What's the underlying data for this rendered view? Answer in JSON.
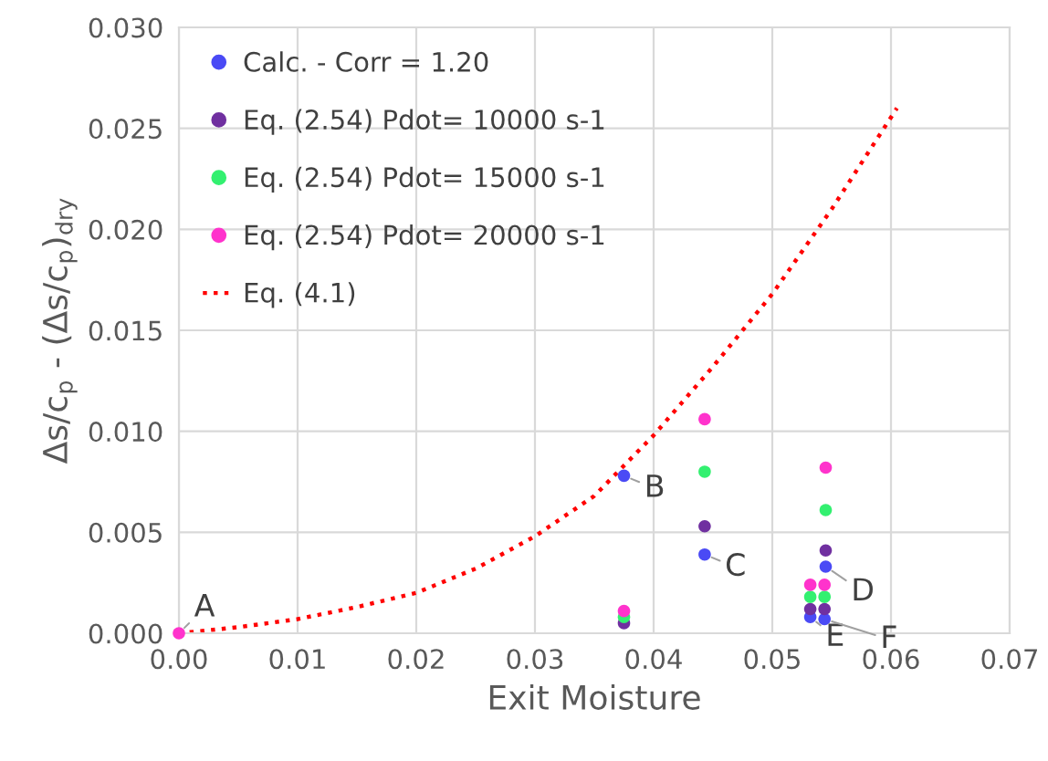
{
  "chart_data": {
    "type": "scatter",
    "xlabel": "Exit Moisture",
    "ylabel": "Δs/c$_{p}$ - (Δs/c$_{p}$)$_{dry}$",
    "xlim": [
      0,
      0.07
    ],
    "xticks": [
      {
        "value": 0,
        "label": "0.00"
      },
      {
        "value": 0.01,
        "label": "0.01"
      },
      {
        "value": 0.02,
        "label": "0.02"
      },
      {
        "value": 0.03,
        "label": "0.03"
      },
      {
        "value": 0.04,
        "label": "0.04"
      },
      {
        "value": 0.05,
        "label": "0.05"
      },
      {
        "value": 0.06,
        "label": "0.06"
      },
      {
        "value": 0.07,
        "label": "0.07"
      }
    ],
    "ylim": [
      0,
      0.03
    ],
    "yticks": [
      {
        "value": 0,
        "label": "0.000"
      },
      {
        "value": 0.005,
        "label": "0.005"
      },
      {
        "value": 0.01,
        "label": "0.010"
      },
      {
        "value": 0.015,
        "label": "0.015"
      },
      {
        "value": 0.02,
        "label": "0.020"
      },
      {
        "value": 0.025,
        "label": "0.025"
      },
      {
        "value": 0.03,
        "label": "0.030"
      }
    ],
    "grid": true,
    "legend": "top left",
    "marker": "circle",
    "series": [
      {
        "name": "Calc. - Corr = 1.20",
        "color": "#4a4af5",
        "x": [
          0.0375,
          0.0443,
          0.0545,
          0.0532,
          0.0544
        ],
        "values": [
          0.0078,
          0.0039,
          0.0033,
          0.0008,
          0.0007
        ]
      },
      {
        "name": "Eq. (2.54) Pdot= 10000 s-1",
        "color": "#7030a0",
        "x": [
          0.0375,
          0.0443,
          0.0545,
          0.0532,
          0.0544
        ],
        "values": [
          0.0005,
          0.0053,
          0.0041,
          0.0012,
          0.0012
        ]
      },
      {
        "name": "Eq. (2.54) Pdot= 15000 s-1",
        "color": "#33f070",
        "x": [
          0.0375,
          0.0443,
          0.0545,
          0.0532,
          0.0544
        ],
        "values": [
          0.0008,
          0.008,
          0.0061,
          0.0018,
          0.0018
        ]
      },
      {
        "name": "Eq. (2.54) Pdot= 20000 s-1",
        "color": "#ff33cc",
        "x": [
          0,
          0.0375,
          0.0443,
          0.0545,
          0.0532,
          0.0544
        ],
        "values": [
          0,
          0.0011,
          0.0106,
          0.0082,
          0.0024,
          0.0024
        ]
      },
      {
        "name": "Eq. (4.1)",
        "type": "line",
        "color": "#ff0000",
        "line_style": "dotted",
        "marker": "none",
        "x": [
          0,
          0.005,
          0.01,
          0.015,
          0.02,
          0.025,
          0.03,
          0.035,
          0.04,
          0.045,
          0.05,
          0.055,
          0.0605
        ],
        "values": [
          0,
          0.0003,
          0.0007,
          0.0013,
          0.002,
          0.0032,
          0.0048,
          0.0068,
          0.0098,
          0.0132,
          0.0168,
          0.021,
          0.026
        ]
      }
    ],
    "annotations": [
      {
        "text": "A",
        "x": 0,
        "y": 0
      },
      {
        "text": "B",
        "x": 0.0375,
        "y": 0.0078
      },
      {
        "text": "C",
        "x": 0.0443,
        "y": 0.0039
      },
      {
        "text": "D",
        "x": 0.0545,
        "y": 0.0033
      },
      {
        "text": "E",
        "x": 0.0532,
        "y": 0.0008
      },
      {
        "text": "F",
        "x": 0.0544,
        "y": 0.0007
      }
    ]
  }
}
